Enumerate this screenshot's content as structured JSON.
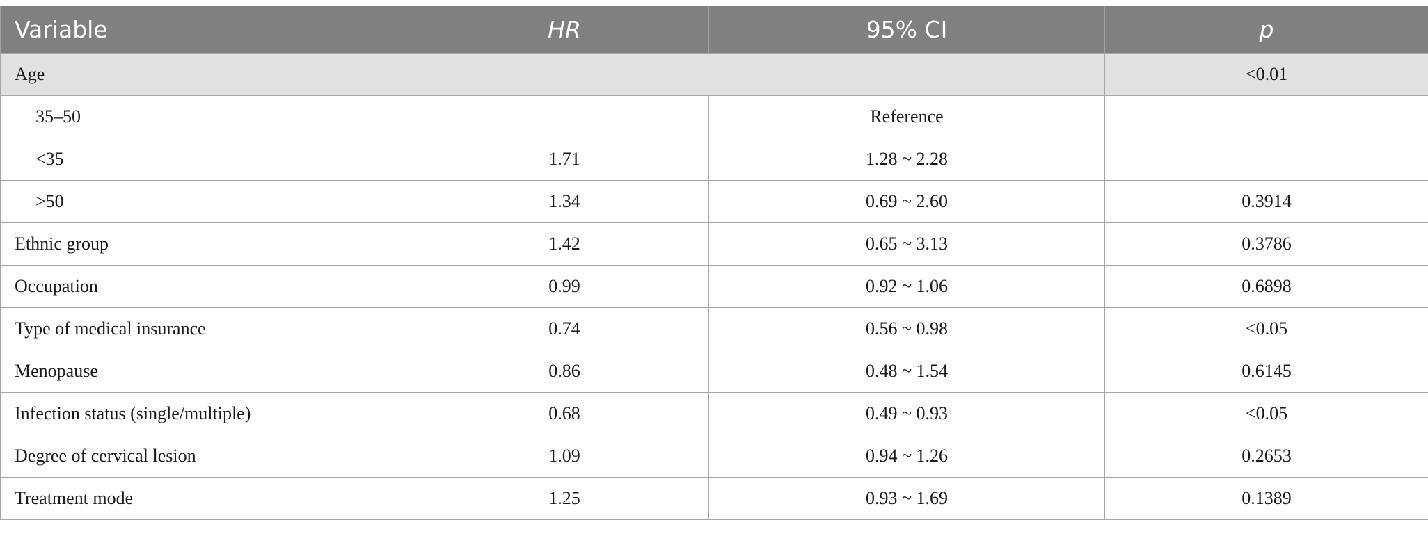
{
  "header": {
    "variable": "Variable",
    "hr": "HR",
    "ci": "95% CI",
    "p": "p"
  },
  "age_row": {
    "label": "Age",
    "p": "<0.01"
  },
  "age_subrows": [
    {
      "label": "35–50",
      "hr": "",
      "ci": "Reference",
      "p": ""
    },
    {
      "label": "<35",
      "hr": "1.71",
      "ci": "1.28 ~ 2.28",
      "p": ""
    },
    {
      "label": ">50",
      "hr": "1.34",
      "ci": "0.69 ~ 2.60",
      "p": "0.3914"
    }
  ],
  "rows": [
    {
      "label": "Ethnic group",
      "hr": "1.42",
      "ci": "0.65 ~ 3.13",
      "p": "0.3786"
    },
    {
      "label": "Occupation",
      "hr": "0.99",
      "ci": "0.92 ~ 1.06",
      "p": "0.6898"
    },
    {
      "label": "Type of medical insurance",
      "hr": "0.74",
      "ci": "0.56 ~ 0.98",
      "p": "<0.05"
    },
    {
      "label": "Menopause",
      "hr": "0.86",
      "ci": "0.48 ~ 1.54",
      "p": "0.6145"
    },
    {
      "label": "Infection status (single/multiple)",
      "hr": "0.68",
      "ci": "0.49 ~ 0.93",
      "p": "<0.05"
    },
    {
      "label": "Degree of cervical lesion",
      "hr": "1.09",
      "ci": "0.94 ~ 1.26",
      "p": "0.2653"
    },
    {
      "label": "Treatment mode",
      "hr": "1.25",
      "ci": "0.93 ~ 1.69",
      "p": "0.1389"
    }
  ],
  "colors": {
    "header_bg": "#808080",
    "group_row_bg": "#e1e1e1",
    "border": "#a6a6a6"
  }
}
